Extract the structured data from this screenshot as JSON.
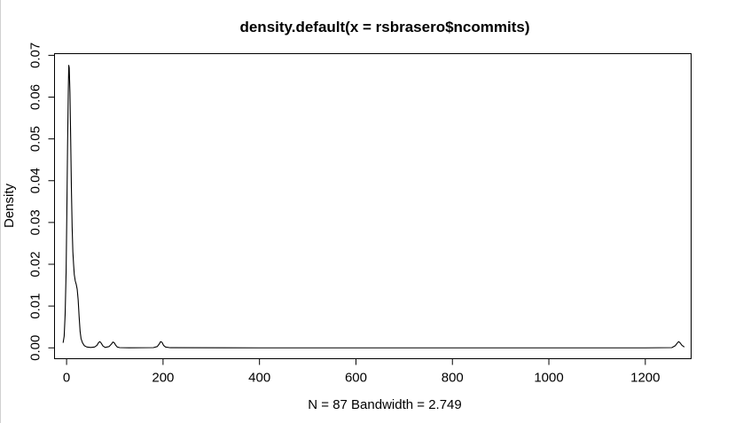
{
  "chart_data": {
    "type": "line",
    "title": "density.default(x = rsbrasero$ncommits)",
    "xlabel": "N = 87   Bandwidth = 2.749",
    "ylabel": "Density",
    "xlim": [
      -25,
      1295
    ],
    "ylim": [
      -0.0026,
      0.0704
    ],
    "x_ticks": [
      0,
      200,
      400,
      600,
      800,
      1000,
      1200
    ],
    "x_tick_labels": [
      "0",
      "200",
      "400",
      "600",
      "800",
      "1000",
      "1200"
    ],
    "y_ticks": [
      0.0,
      0.01,
      0.02,
      0.03,
      0.04,
      0.05,
      0.06,
      0.07
    ],
    "y_tick_labels": [
      "0.00",
      "0.01",
      "0.02",
      "0.03",
      "0.04",
      "0.05",
      "0.06",
      "0.07"
    ],
    "grid": false,
    "series": [
      {
        "color": "#000000",
        "x": [
          -7.2,
          -5.0,
          -3.0,
          -1.0,
          0.5,
          2.0,
          3.5,
          4.5,
          5.5,
          7.0,
          8.5,
          10.0,
          11.5,
          13.0,
          14.5,
          16.0,
          18.0,
          20.0,
          22.0,
          24.0,
          26.0,
          28.0,
          30.0,
          33.0,
          37.0,
          42.0,
          50.0,
          58.0,
          63.0,
          66.0,
          69.0,
          72.0,
          75.0,
          80.0,
          88.0,
          93.0,
          96.0,
          99.0,
          102.0,
          105.0,
          110.0,
          130.0,
          180.0,
          188.0,
          192.0,
          195.0,
          198.0,
          201.0,
          205.0,
          215.0,
          400.0,
          800.0,
          1200.0,
          1255.0,
          1262.0,
          1266.0,
          1269.0,
          1272.0,
          1276.0,
          1281.0
        ],
        "y": [
          0.0012,
          0.0028,
          0.008,
          0.018,
          0.032,
          0.048,
          0.061,
          0.0676,
          0.067,
          0.061,
          0.05,
          0.038,
          0.029,
          0.023,
          0.02,
          0.0175,
          0.016,
          0.0152,
          0.014,
          0.0115,
          0.0075,
          0.004,
          0.0022,
          0.0012,
          0.0005,
          0.0002,
          0.0001,
          0.0002,
          0.0006,
          0.0012,
          0.0015,
          0.0011,
          0.0005,
          0.0001,
          0.0003,
          0.0009,
          0.0014,
          0.0012,
          0.0006,
          0.0002,
          5e-05,
          2e-05,
          5e-05,
          0.0003,
          0.0009,
          0.0015,
          0.0013,
          0.0006,
          0.0002,
          3e-05,
          0.0,
          0.0,
          0.0,
          5e-05,
          0.0005,
          0.0011,
          0.0015,
          0.0012,
          0.0006,
          0.0002
        ]
      }
    ]
  }
}
